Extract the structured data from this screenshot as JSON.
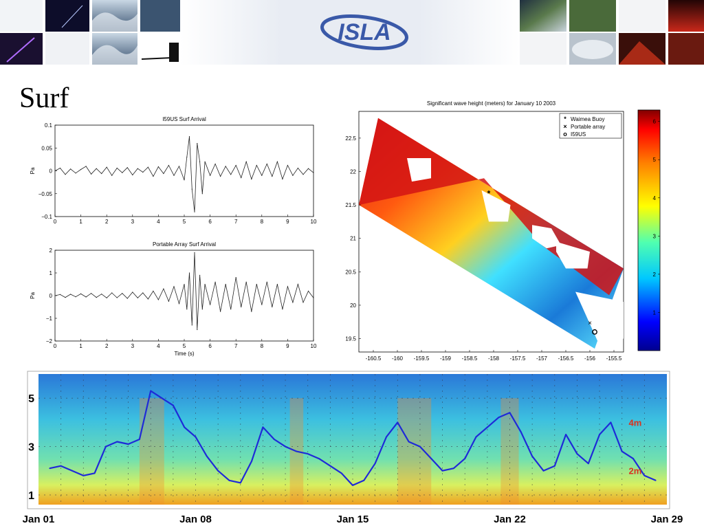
{
  "slide": {
    "title": "Surf",
    "logo_text": "ISLA"
  },
  "colors": {
    "banner_center": "#eef1f6",
    "logo_blue": "#3a59a8",
    "trace": "#222222",
    "spectro_line": "#1e2ad8",
    "annot_red": "#d9331e"
  },
  "chart_data": [
    {
      "type": "line",
      "title": "I59US Surf Arrival",
      "xlabel": "",
      "ylabel": "Pa",
      "xlim": [
        0,
        10
      ],
      "ylim": [
        -0.1,
        0.1
      ],
      "xticks": [
        "0",
        "1",
        "2",
        "3",
        "4",
        "5",
        "6",
        "7",
        "8",
        "9",
        "10"
      ],
      "yticks": [
        "0.1",
        "0.05",
        "0",
        "−0.05",
        "−0.1"
      ],
      "series": [
        {
          "x": [
            0,
            0.2,
            0.4,
            0.6,
            0.8,
            1.0,
            1.2,
            1.4,
            1.6,
            1.8,
            2.0,
            2.2,
            2.4,
            2.6,
            2.8,
            3.0,
            3.2,
            3.4,
            3.6,
            3.8,
            4.0,
            4.2,
            4.4,
            4.6,
            4.8,
            5.0,
            5.1,
            5.2,
            5.3,
            5.4,
            5.5,
            5.6,
            5.7,
            5.8,
            6.0,
            6.2,
            6.4,
            6.6,
            6.8,
            7.0,
            7.2,
            7.4,
            7.6,
            7.8,
            8.0,
            8.2,
            8.4,
            8.6,
            8.8,
            9.0,
            9.2,
            9.4,
            9.6,
            9.8,
            10.0
          ],
          "y": [
            0,
            0.006,
            -0.008,
            0.004,
            -0.005,
            0.003,
            0.01,
            -0.007,
            0.005,
            -0.006,
            0.008,
            -0.01,
            0.006,
            -0.004,
            0.007,
            -0.009,
            0.005,
            -0.003,
            0.008,
            -0.012,
            0.009,
            -0.006,
            0.012,
            -0.01,
            0.01,
            -0.02,
            0.03,
            0.075,
            -0.04,
            -0.09,
            0.06,
            0.02,
            -0.05,
            0.02,
            -0.01,
            0.015,
            -0.012,
            0.01,
            -0.008,
            0.012,
            -0.015,
            0.02,
            -0.018,
            0.012,
            -0.01,
            0.015,
            -0.012,
            0.02,
            -0.018,
            0.012,
            -0.01,
            0.006,
            -0.008,
            0.005,
            -0.004
          ]
        }
      ]
    },
    {
      "type": "line",
      "title": "Portable Array Surf Arrival",
      "xlabel": "Time (s)",
      "ylabel": "Pa",
      "xlim": [
        0,
        10
      ],
      "ylim": [
        -2,
        2
      ],
      "xticks": [
        "0",
        "1",
        "2",
        "3",
        "4",
        "5",
        "6",
        "7",
        "8",
        "9",
        "10"
      ],
      "yticks": [
        "2",
        "1",
        "0",
        "−1",
        "−2"
      ],
      "series": [
        {
          "x": [
            0,
            0.2,
            0.4,
            0.6,
            0.8,
            1.0,
            1.2,
            1.4,
            1.6,
            1.8,
            2.0,
            2.2,
            2.4,
            2.6,
            2.8,
            3.0,
            3.2,
            3.4,
            3.6,
            3.8,
            4.0,
            4.2,
            4.4,
            4.6,
            4.8,
            5.0,
            5.1,
            5.2,
            5.3,
            5.4,
            5.5,
            5.6,
            5.7,
            5.8,
            6.0,
            6.2,
            6.4,
            6.6,
            6.8,
            7.0,
            7.2,
            7.4,
            7.6,
            7.8,
            8.0,
            8.2,
            8.4,
            8.6,
            8.8,
            9.0,
            9.2,
            9.4,
            9.6,
            9.8,
            10.0
          ],
          "y": [
            0,
            0.05,
            -0.08,
            0.06,
            -0.05,
            0.08,
            -0.06,
            0.1,
            -0.08,
            0.07,
            -0.1,
            0.12,
            -0.09,
            0.1,
            -0.12,
            0.15,
            -0.1,
            0.12,
            -0.15,
            0.2,
            -0.18,
            0.3,
            -0.25,
            0.4,
            -0.35,
            0.5,
            -0.6,
            1.0,
            -1.3,
            1.9,
            -1.5,
            0.9,
            -0.6,
            0.5,
            -0.4,
            0.6,
            -0.7,
            0.5,
            -0.6,
            0.8,
            -0.5,
            0.6,
            -0.7,
            0.5,
            -0.4,
            0.6,
            -0.5,
            0.5,
            -0.6,
            0.4,
            -0.3,
            0.5,
            -0.3,
            0.2,
            -0.1
          ]
        }
      ]
    },
    {
      "type": "heatmap",
      "title": "Significant wave height (meters) for January 10 2003",
      "xlim": [
        -160.8,
        -155.3
      ],
      "ylim": [
        19.3,
        22.9
      ],
      "xticks": [
        "-160.5",
        "-160",
        "-159.5",
        "-159",
        "-158.5",
        "-158",
        "-157.5",
        "-157",
        "-156.5",
        "-156",
        "-155.5"
      ],
      "yticks": [
        "22.5",
        "22",
        "21.5",
        "21",
        "20.5",
        "20",
        "19.5"
      ],
      "colorbar": {
        "min": 0,
        "max": 6.3,
        "ticks": [
          "6",
          "5",
          "4",
          "3",
          "2",
          "1"
        ]
      },
      "legend": {
        "position": "top-right",
        "entries": [
          {
            "marker": "*",
            "label": "Waimea Buoy",
            "lon": -158.1,
            "lat": 21.67
          },
          {
            "marker": "x",
            "label": "Portable array",
            "lon": -156.0,
            "lat": 19.73
          },
          {
            "marker": "o",
            "label": "I59US",
            "lon": -155.9,
            "lat": 19.6
          }
        ]
      }
    },
    {
      "type": "area",
      "ylim": [
        0.6,
        6.0
      ],
      "yticks": [
        "5",
        "3",
        "1"
      ],
      "xlim": [
        1,
        29
      ],
      "xticks": [
        "Jan 01",
        "Jan 08",
        "Jan 15",
        "Jan 22",
        "Jan 29"
      ],
      "annotations": [
        "4m",
        "2m"
      ],
      "series": [
        {
          "x": [
            1.5,
            2,
            2.5,
            3,
            3.5,
            4,
            4.5,
            5,
            5.5,
            6,
            6.5,
            7,
            7.5,
            8,
            8.5,
            9,
            9.5,
            10,
            10.5,
            11,
            11.5,
            12,
            12.5,
            13,
            13.5,
            14,
            14.5,
            15,
            15.5,
            16,
            16.5,
            17,
            17.5,
            18,
            18.5,
            19,
            19.5,
            20,
            20.5,
            21,
            21.5,
            22,
            22.5,
            23,
            23.5,
            24,
            24.5,
            25,
            25.5,
            26,
            26.5,
            27,
            27.5,
            28,
            28.5
          ],
          "y": [
            2.1,
            2.2,
            2.0,
            1.8,
            1.9,
            3.0,
            3.2,
            3.1,
            3.3,
            5.3,
            5.0,
            4.7,
            3.8,
            3.4,
            2.6,
            2.0,
            1.6,
            1.5,
            2.4,
            3.8,
            3.3,
            3.0,
            2.8,
            2.7,
            2.5,
            2.2,
            1.9,
            1.4,
            1.6,
            2.3,
            3.4,
            4.0,
            3.2,
            3.0,
            2.5,
            2.0,
            2.1,
            2.5,
            3.4,
            3.8,
            4.2,
            4.4,
            3.6,
            2.6,
            2.0,
            2.2,
            3.5,
            2.7,
            2.3,
            3.5,
            4.0,
            2.8,
            2.5,
            1.8,
            1.6
          ]
        }
      ]
    }
  ]
}
